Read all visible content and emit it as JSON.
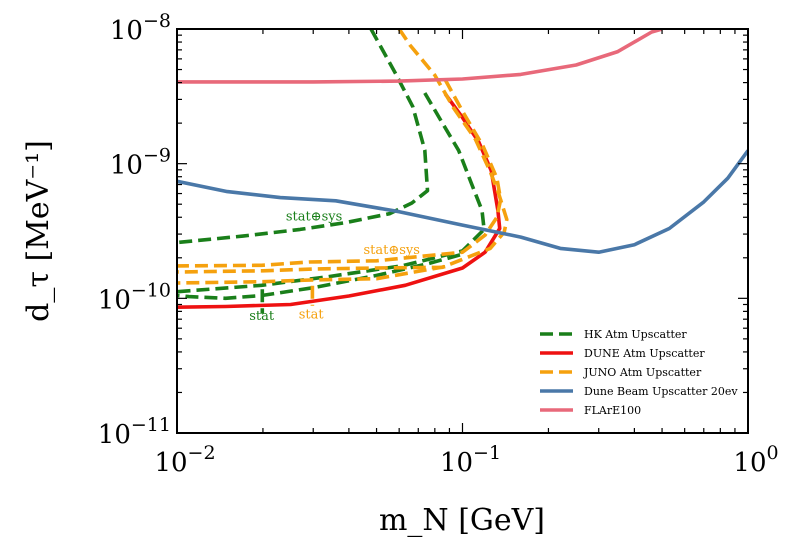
{
  "chart_data": {
    "type": "line",
    "title": "",
    "xlabel": "m_N [GeV]",
    "ylabel": "d_τ [MeV⁻¹]",
    "x_scale": "log",
    "y_scale": "log",
    "xlim": [
      0.01,
      1.0
    ],
    "ylim": [
      1e-11,
      1e-08
    ],
    "grid": false,
    "legend_position": "lower-right",
    "x_ticks": [
      {
        "value": 0.01,
        "base": "10",
        "exp": "−2"
      },
      {
        "value": 0.1,
        "base": "10",
        "exp": "−1"
      },
      {
        "value": 1.0,
        "base": "10",
        "exp": "0"
      }
    ],
    "y_ticks": [
      {
        "value": 1e-11,
        "base": "10",
        "exp": "−11"
      },
      {
        "value": 1e-10,
        "base": "10",
        "exp": "−10"
      },
      {
        "value": 1e-09,
        "base": "10",
        "exp": "−9"
      },
      {
        "value": 1e-08,
        "base": "10",
        "exp": "−8"
      }
    ],
    "series": [
      {
        "name": "HK Atm Upscatter",
        "color": "#1a7f1a",
        "style": "dashed",
        "segments": [
          [
            [
              0.0478,
              1e-08
            ],
            [
              0.0585,
              4.6e-09
            ],
            [
              0.067,
              2.65e-09
            ],
            [
              0.0738,
              1.26e-09
            ],
            [
              0.0754,
              6.3e-10
            ],
            [
              0.0665,
              5.1e-10
            ],
            [
              0.0555,
              4.25e-10
            ],
            [
              0.039,
              3.65e-10
            ],
            [
              0.027,
              3.25e-10
            ],
            [
              0.017,
              2.9e-10
            ],
            [
              0.01,
              2.6e-10
            ]
          ],
          [
            [
              0.0738,
              3.35e-09
            ],
            [
              0.0845,
              2.05e-09
            ],
            [
              0.097,
              1.25e-09
            ],
            [
              0.107,
              7.3e-10
            ],
            [
              0.117,
              4.5e-10
            ],
            [
              0.119,
              3.25e-10
            ],
            [
              0.1,
              2.25e-10
            ],
            [
              0.062,
              1.75e-10
            ],
            [
              0.034,
              1.45e-10
            ],
            [
              0.0198,
              1.25e-10
            ],
            [
              0.01,
              1.12e-10
            ]
          ],
          [
            [
              0.098,
              2.1e-10
            ],
            [
              0.075,
              1.8e-10
            ],
            [
              0.05,
              1.48e-10
            ],
            [
              0.03,
              1.2e-10
            ],
            [
              0.0198,
              1.05e-10
            ],
            [
              0.0148,
              1e-10
            ],
            [
              0.011,
              1.03e-10
            ],
            [
              0.01,
              1.05e-10
            ]
          ],
          [
            [
              0.0199,
              1.17e-10
            ],
            [
              0.0199,
              7.7e-11
            ]
          ]
        ]
      },
      {
        "name": "DUNE Atm Upscatter",
        "color": "#ee1111",
        "style": "solid",
        "segments": [
          [
            [
              0.087,
              3.3e-09
            ],
            [
              0.1,
              2.2e-09
            ],
            [
              0.114,
              1.45e-09
            ],
            [
              0.126,
              8.9e-10
            ],
            [
              0.133,
              4.5e-10
            ],
            [
              0.135,
              3.3e-10
            ],
            [
              0.12,
              2.2e-10
            ],
            [
              0.1,
              1.68e-10
            ],
            [
              0.063,
              1.25e-10
            ],
            [
              0.04,
              1.04e-10
            ],
            [
              0.025,
              9e-11
            ],
            [
              0.0148,
              8.7e-11
            ],
            [
              0.01,
              8.6e-11
            ]
          ]
        ]
      },
      {
        "name": "JUNO Atm Upscatter",
        "color": "#f5a10e",
        "style": "dashed",
        "segments": [
          [
            [
              0.06,
              1e-08
            ],
            [
              0.0655,
              7.6e-09
            ],
            [
              0.08,
              4.55e-09
            ],
            [
              0.093,
              2.6e-09
            ],
            [
              0.111,
              1.52e-09
            ],
            [
              0.125,
              8.75e-10
            ],
            [
              0.134,
              5.95e-10
            ],
            [
              0.143,
              3.85e-10
            ],
            [
              0.14,
              3.1e-10
            ],
            [
              0.125,
              2.35e-10
            ],
            [
              0.1,
              1.95e-10
            ],
            [
              0.085,
              1.7e-10
            ],
            [
              0.05,
              1.68e-10
            ],
            [
              0.03,
              1.65e-10
            ],
            [
              0.02,
              1.6e-10
            ],
            [
              0.01,
              1.57e-10
            ]
          ],
          [
            [
              0.087,
              4.2e-09
            ],
            [
              0.1,
              2.45e-09
            ],
            [
              0.118,
              1.35e-09
            ],
            [
              0.132,
              7.8e-10
            ],
            [
              0.136,
              5.4e-10
            ],
            [
              0.132,
              4e-10
            ],
            [
              0.12,
              2.95e-10
            ],
            [
              0.1,
              2.2e-10
            ],
            [
              0.05,
              1.9e-10
            ],
            [
              0.029,
              1.86e-10
            ],
            [
              0.0198,
              1.76e-10
            ],
            [
              0.01,
              1.74e-10
            ]
          ],
          [
            [
              0.087,
              1.72e-10
            ],
            [
              0.05,
              1.4e-10
            ],
            [
              0.03,
              1.37e-10
            ],
            [
              0.02,
              1.33e-10
            ],
            [
              0.01,
              1.3e-10
            ]
          ],
          [
            [
              0.0298,
              1.24e-10
            ],
            [
              0.0298,
              8.8e-11
            ]
          ]
        ]
      },
      {
        "name": "Dune Beam Upscatter 20ev",
        "color": "#4a78a8",
        "style": "solid",
        "segments": [
          [
            [
              0.01,
              7.4e-10
            ],
            [
              0.015,
              6.2e-10
            ],
            [
              0.023,
              5.6e-10
            ],
            [
              0.036,
              5.3e-10
            ],
            [
              0.06,
              4.4e-10
            ],
            [
              0.1,
              3.5e-10
            ],
            [
              0.16,
              2.85e-10
            ],
            [
              0.22,
              2.35e-10
            ],
            [
              0.3,
              2.2e-10
            ],
            [
              0.4,
              2.5e-10
            ],
            [
              0.53,
              3.3e-10
            ],
            [
              0.7,
              5.2e-10
            ],
            [
              0.85,
              7.8e-10
            ],
            [
              1.0,
              1.25e-09
            ]
          ]
        ]
      },
      {
        "name": "FLArE100",
        "color": "#e8697a",
        "style": "solid",
        "segments": [
          [
            [
              0.01,
              4.05e-09
            ],
            [
              0.03,
              4.05e-09
            ],
            [
              0.06,
              4.1e-09
            ],
            [
              0.1,
              4.25e-09
            ],
            [
              0.16,
              4.6e-09
            ],
            [
              0.25,
              5.4e-09
            ],
            [
              0.35,
              6.8e-09
            ],
            [
              0.46,
              9.5e-09
            ],
            [
              0.5,
              1e-08
            ]
          ]
        ]
      }
    ],
    "annotations": [
      {
        "text": "stat⊕sys",
        "color": "#1a7f1a",
        "x": 0.0302,
        "y": 3.78e-10
      },
      {
        "text": "stat⊕sys",
        "color": "#f5a10e",
        "x": 0.0565,
        "y": 2.14e-10
      },
      {
        "text": "stat",
        "color": "#1a7f1a",
        "x": 0.0198,
        "y": 6.9e-11
      },
      {
        "text": "stat",
        "color": "#f5a10e",
        "x": 0.0295,
        "y": 7.08e-11
      }
    ]
  }
}
